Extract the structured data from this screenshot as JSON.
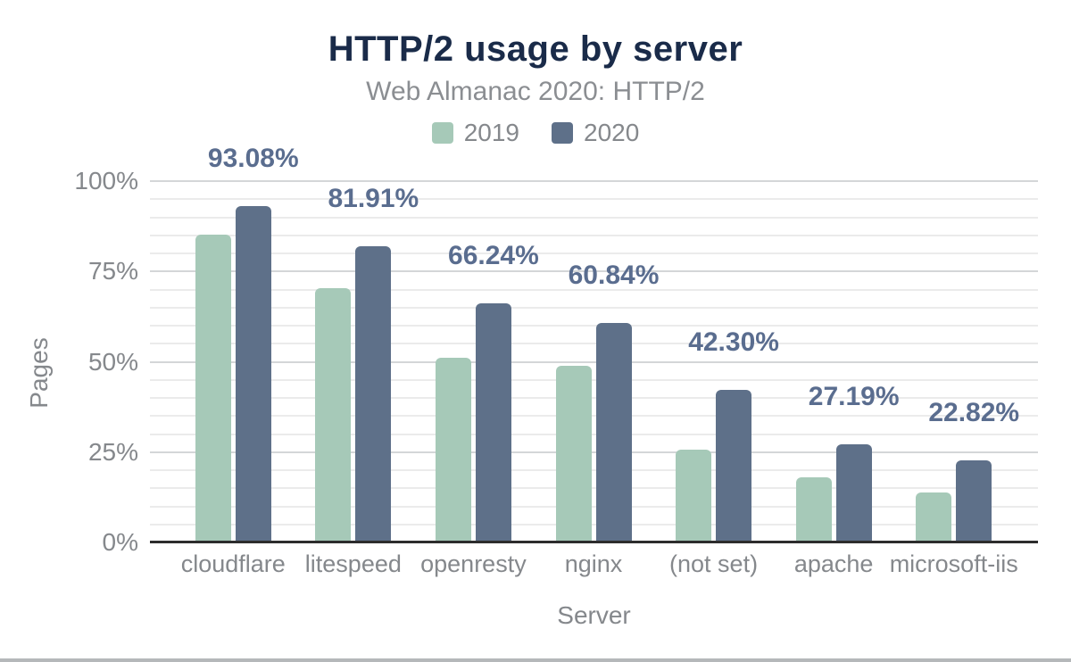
{
  "page": {
    "background": "#ffffff",
    "bottom_border_color": "#b5b8ba"
  },
  "chart_data": {
    "type": "bar",
    "title": "HTTP/2 usage by server",
    "subtitle": "Web Almanac 2020: HTTP/2",
    "xlabel": "Server",
    "ylabel": "Pages",
    "categories": [
      "cloudflare",
      "litespeed",
      "openresty",
      "nginx",
      "(not set)",
      "apache",
      "microsoft-iis"
    ],
    "series": [
      {
        "name": "2019",
        "color": "#a6c9b8",
        "values": [
          85.1,
          70.4,
          51.2,
          49.0,
          25.6,
          18.0,
          13.9
        ],
        "labels_shown": false
      },
      {
        "name": "2020",
        "color": "#5e7089",
        "values": [
          93.08,
          81.91,
          66.24,
          60.84,
          42.3,
          27.19,
          22.82
        ],
        "labels_shown": true,
        "data_labels": [
          "93.08%",
          "81.91%",
          "66.24%",
          "60.84%",
          "42.30%",
          "27.19%",
          "22.82%"
        ]
      }
    ],
    "ylim": [
      0,
      100
    ],
    "yticks": [
      {
        "value": 0,
        "label": "0%"
      },
      {
        "value": 25,
        "label": "25%"
      },
      {
        "value": 50,
        "label": "50%"
      },
      {
        "value": 75,
        "label": "75%"
      },
      {
        "value": 100,
        "label": "100%"
      }
    ],
    "minor_grid_step": 5,
    "major_grid_step": 25,
    "grid": true,
    "legend_position": "top",
    "colors": {
      "title": "#1a2b49",
      "subtitle": "#8b8e92",
      "axis_text": "#85888c",
      "value_label": "#5a6d8f",
      "major_grid": "#d4d6d8",
      "minor_grid": "#ebebeb",
      "baseline": "#2d2d2d"
    }
  }
}
